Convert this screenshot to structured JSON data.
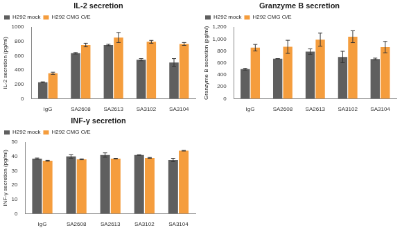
{
  "chart_data": [
    {
      "type": "bar",
      "title": "IL-2 secretion",
      "y_label": "IL-2 secretion (pg/ml)",
      "categories": [
        "IgG",
        "SA2608",
        "SA2613",
        "SA3102",
        "SA3104"
      ],
      "series": [
        {
          "name": "H292 mock",
          "color": "#5f5f5f",
          "values": [
            230,
            635,
            750,
            545,
            505
          ],
          "errors": [
            5,
            10,
            10,
            15,
            55
          ]
        },
        {
          "name": "H292 CMG O/E",
          "color": "#f59d3d",
          "values": [
            355,
            750,
            855,
            795,
            765
          ],
          "errors": [
            15,
            25,
            70,
            20,
            20
          ]
        }
      ],
      "ylim": [
        0,
        1000
      ],
      "yticks": [
        0,
        200,
        400,
        600,
        800,
        1000
      ],
      "grid": false,
      "legend": "top-left"
    },
    {
      "type": "bar",
      "title": "Granzyme B secretion",
      "y_label": "Granzyme B secretion (pg/ml)",
      "categories": [
        "IgG",
        "SA2608",
        "SA2613",
        "SA3102",
        "SA3104"
      ],
      "series": [
        {
          "name": "H292 mock",
          "color": "#5f5f5f",
          "values": [
            495,
            670,
            790,
            700,
            665
          ],
          "errors": [
            15,
            0,
            45,
            95,
            15
          ]
        },
        {
          "name": "H292 CMG O/E",
          "color": "#f59d3d",
          "values": [
            855,
            870,
            990,
            1040,
            865
          ],
          "errors": [
            55,
            110,
            110,
            100,
            95
          ]
        }
      ],
      "ylim": [
        0,
        1200
      ],
      "yticks": [
        0,
        200,
        400,
        600,
        800,
        {
          "value": 1000,
          "label": "1,000"
        },
        {
          "value": 1200,
          "label": "1,200"
        }
      ],
      "grid": false,
      "legend": "top-left"
    },
    {
      "type": "bar",
      "title": "INF-γ secretion",
      "y_label": "INF-γ secretion (pg/ml)",
      "categories": [
        "IgG",
        "SA2608",
        "SA2613",
        "SA3102",
        "SA3104"
      ],
      "series": [
        {
          "name": "H292 mock",
          "color": "#5f5f5f",
          "values": [
            38.5,
            40,
            41,
            41,
            37.5
          ],
          "errors": [
            0.4,
            1.2,
            1.5,
            0.2,
            1.2
          ]
        },
        {
          "name": "H292 CMG O/E",
          "color": "#f59d3d",
          "values": [
            37,
            38,
            38.5,
            39,
            44
          ],
          "errors": [
            0.3,
            0.3,
            0.2,
            0.3,
            0.2
          ]
        }
      ],
      "ylim": [
        0,
        50
      ],
      "yticks": [
        0,
        10,
        20,
        30,
        40,
        50
      ],
      "grid": false,
      "legend": "top-left"
    }
  ]
}
